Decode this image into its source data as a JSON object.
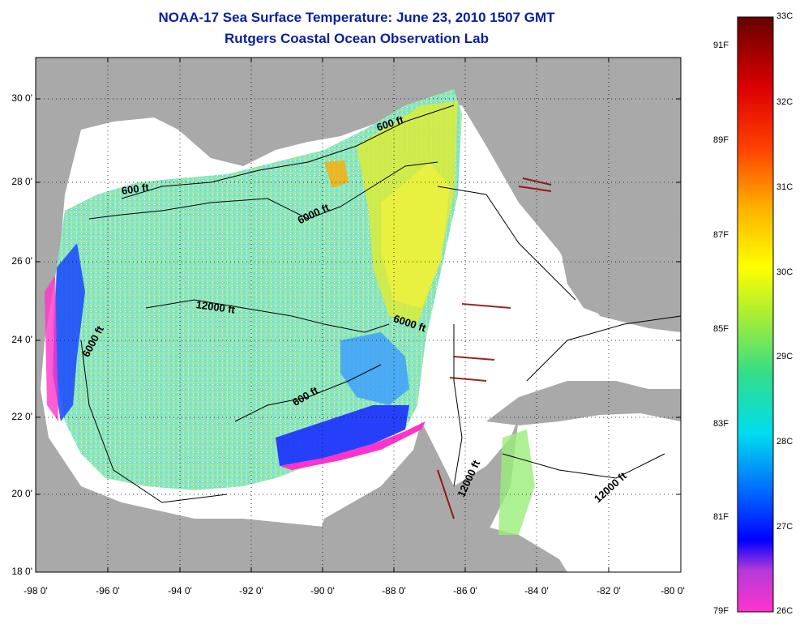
{
  "title": {
    "line1": "NOAA-17 Sea Surface Temperature:  June 23, 2010 1507 GMT",
    "line2": "Rutgers Coastal Ocean Observation Lab"
  },
  "map": {
    "lon_range": [
      -98,
      -80
    ],
    "lat_range": [
      18,
      31
    ],
    "y_ticks": [
      "30 0'",
      "28 0'",
      "26 0'",
      "24 0'",
      "22 0'",
      "20 0'",
      "18 0'"
    ],
    "x_ticks": [
      "-98 0'",
      "-96 0'",
      "-94 0'",
      "-92 0'",
      "-90 0'",
      "-88 0'",
      "-86 0'",
      "-84 0'",
      "-82 0'",
      "-80 0'"
    ],
    "land_color": "#a9a9a9",
    "no_data_color": "#ffffff",
    "contour_labels": [
      "600 ft",
      "600 ft",
      "6000 ft",
      "12000 ft",
      "6000 ft",
      "6000 ft",
      "600 ft",
      "12000 ft",
      "12000 ft"
    ]
  },
  "colorbar": {
    "celsius_labels": [
      "33C",
      "32C",
      "31C",
      "30C",
      "29C",
      "28C",
      "27C",
      "26C"
    ],
    "fahrenheit_labels": [
      "91F",
      "89F",
      "87F",
      "85F",
      "83F",
      "81F",
      "79F"
    ],
    "colors": [
      "#ff33cc",
      "#7a2fd8",
      "#0000ff",
      "#00aaff",
      "#00e6e6",
      "#33dd88",
      "#aaee33",
      "#ffff00",
      "#ffb000",
      "#ff5000",
      "#ee0000",
      "#aa0000",
      "#660000"
    ]
  }
}
